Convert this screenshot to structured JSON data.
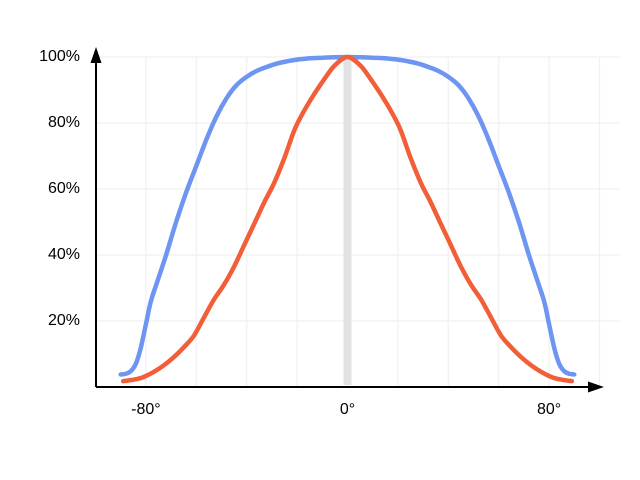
{
  "chart_data": {
    "type": "line",
    "title": "",
    "xlabel": "",
    "ylabel": "",
    "x_unit": "degrees",
    "y_unit": "percent",
    "xlim_deg": [
      -100,
      102
    ],
    "ylim_pct": [
      0,
      100
    ],
    "x_ticks": [
      {
        "deg": -80,
        "label": "-80°"
      },
      {
        "deg": 0,
        "label": "0°"
      },
      {
        "deg": 80,
        "label": "80°"
      }
    ],
    "y_ticks": [
      {
        "pct": 20,
        "label": "20%"
      },
      {
        "pct": 40,
        "label": "40%"
      },
      {
        "pct": 60,
        "label": "60%"
      },
      {
        "pct": 80,
        "label": "80%"
      },
      {
        "pct": 100,
        "label": "100%"
      }
    ],
    "grid": {
      "visible": true,
      "color": "#f1f1f1",
      "x_interval_deg": 20,
      "x_grid_range_deg": [
        -80,
        100
      ],
      "y_interval_pct": 20
    },
    "center_band": {
      "deg": 0,
      "color": "#e2e2e2",
      "description": "vertical highlight bar at 0 degrees"
    },
    "axes": {
      "color": "#000000",
      "arrowheads": true
    },
    "legend": null,
    "series": [
      {
        "name": "wide-flat-top-curve",
        "color": "#6d95f1",
        "stroke_width": 4.5,
        "points_deg_pct": [
          [
            -90,
            3.8
          ],
          [
            -88,
            4
          ],
          [
            -86,
            4.8
          ],
          [
            -84,
            7
          ],
          [
            -82,
            12
          ],
          [
            -80,
            19
          ],
          [
            -78,
            26
          ],
          [
            -75,
            33
          ],
          [
            -72,
            40
          ],
          [
            -68,
            50
          ],
          [
            -64,
            59
          ],
          [
            -60,
            67
          ],
          [
            -56,
            75
          ],
          [
            -52,
            82
          ],
          [
            -48,
            87.5
          ],
          [
            -44,
            91.5
          ],
          [
            -40,
            94
          ],
          [
            -36,
            95.8
          ],
          [
            -32,
            97
          ],
          [
            -28,
            98
          ],
          [
            -24,
            98.7
          ],
          [
            -20,
            99.2
          ],
          [
            -15,
            99.6
          ],
          [
            -10,
            99.8
          ],
          [
            -5,
            99.9
          ],
          [
            0,
            100
          ],
          [
            5,
            99.9
          ],
          [
            10,
            99.8
          ],
          [
            15,
            99.6
          ],
          [
            20,
            99.2
          ],
          [
            24,
            98.7
          ],
          [
            28,
            98
          ],
          [
            32,
            97
          ],
          [
            36,
            95.8
          ],
          [
            40,
            94
          ],
          [
            44,
            91.5
          ],
          [
            48,
            87.5
          ],
          [
            52,
            82
          ],
          [
            56,
            75
          ],
          [
            60,
            67
          ],
          [
            64,
            59
          ],
          [
            68,
            50
          ],
          [
            72,
            40
          ],
          [
            75,
            33
          ],
          [
            78,
            26
          ],
          [
            80,
            19
          ],
          [
            82,
            12
          ],
          [
            84,
            7
          ],
          [
            86,
            4.8
          ],
          [
            88,
            4
          ],
          [
            90,
            3.8
          ]
        ]
      },
      {
        "name": "narrow-bell-curve",
        "color": "#f25e38",
        "stroke_width": 4.5,
        "points_deg_pct": [
          [
            -89,
            1.8
          ],
          [
            -85,
            2.2
          ],
          [
            -81,
            3
          ],
          [
            -77,
            4.5
          ],
          [
            -73,
            6.5
          ],
          [
            -69,
            9
          ],
          [
            -65,
            12
          ],
          [
            -61,
            15.5
          ],
          [
            -57,
            21
          ],
          [
            -53,
            26.5
          ],
          [
            -49,
            31
          ],
          [
            -45,
            36.5
          ],
          [
            -41,
            43
          ],
          [
            -37,
            49.5
          ],
          [
            -33,
            56
          ],
          [
            -29,
            62
          ],
          [
            -25,
            69.5
          ],
          [
            -21,
            78
          ],
          [
            -17,
            84
          ],
          [
            -13,
            89
          ],
          [
            -9,
            93.5
          ],
          [
            -5,
            97.5
          ],
          [
            0,
            100
          ],
          [
            5,
            97.5
          ],
          [
            9,
            93.5
          ],
          [
            13,
            89
          ],
          [
            17,
            84
          ],
          [
            21,
            78
          ],
          [
            25,
            69.5
          ],
          [
            29,
            62
          ],
          [
            33,
            56
          ],
          [
            37,
            49.5
          ],
          [
            41,
            43
          ],
          [
            45,
            36.5
          ],
          [
            49,
            31
          ],
          [
            53,
            26.5
          ],
          [
            57,
            21
          ],
          [
            61,
            15.5
          ],
          [
            65,
            12
          ],
          [
            69,
            9
          ],
          [
            73,
            6.5
          ],
          [
            77,
            4.5
          ],
          [
            81,
            3
          ],
          [
            85,
            2.2
          ],
          [
            89,
            1.8
          ]
        ]
      }
    ]
  }
}
